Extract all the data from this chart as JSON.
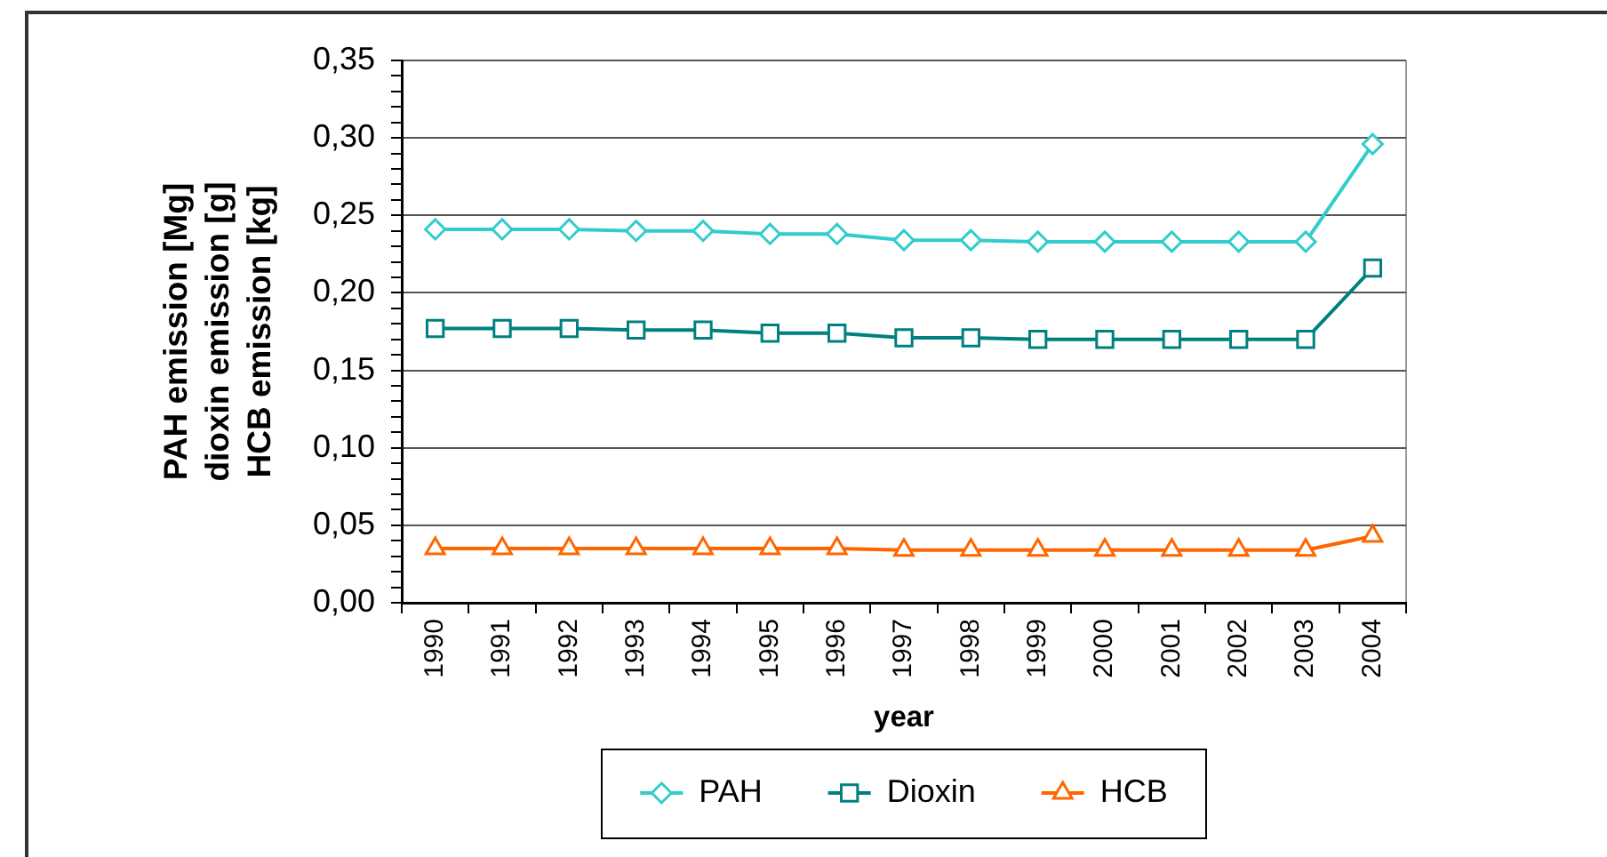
{
  "chart_data": {
    "type": "line",
    "xlabel": "year",
    "ylabel": "PAH emission [Mg]\ndioxin emission [g]\nHCB emission [kg]",
    "categories": [
      "1990",
      "1991",
      "1992",
      "1993",
      "1994",
      "1995",
      "1996",
      "1997",
      "1998",
      "1999",
      "2000",
      "2001",
      "2002",
      "2003",
      "2004"
    ],
    "series": [
      {
        "name": "PAH",
        "color": "#33cccc",
        "marker": "diamond",
        "values": [
          0.241,
          0.241,
          0.241,
          0.24,
          0.24,
          0.238,
          0.238,
          0.234,
          0.234,
          0.233,
          0.233,
          0.233,
          0.233,
          0.233,
          0.296
        ]
      },
      {
        "name": "Dioxin",
        "color": "#008080",
        "marker": "square",
        "values": [
          0.177,
          0.177,
          0.177,
          0.176,
          0.176,
          0.174,
          0.174,
          0.171,
          0.171,
          0.17,
          0.17,
          0.17,
          0.17,
          0.17,
          0.216
        ]
      },
      {
        "name": "HCB",
        "color": "#ff6600",
        "marker": "triangle",
        "values": [
          0.035,
          0.035,
          0.035,
          0.035,
          0.035,
          0.035,
          0.035,
          0.034,
          0.034,
          0.034,
          0.034,
          0.034,
          0.034,
          0.034,
          0.043
        ]
      }
    ],
    "ylim": [
      0,
      0.35
    ],
    "yticks": [
      {
        "value": 0,
        "label": "0,00"
      },
      {
        "value": 0.01,
        "label": null
      },
      {
        "value": 0.02,
        "label": null
      },
      {
        "value": 0.03,
        "label": null
      },
      {
        "value": 0.04,
        "label": null
      },
      {
        "value": 0.05,
        "label": "0,05"
      },
      {
        "value": 0.06,
        "label": null
      },
      {
        "value": 0.07,
        "label": null
      },
      {
        "value": 0.08,
        "label": null
      },
      {
        "value": 0.09,
        "label": null
      },
      {
        "value": 0.1,
        "label": "0,10"
      },
      {
        "value": 0.11,
        "label": null
      },
      {
        "value": 0.12,
        "label": null
      },
      {
        "value": 0.13,
        "label": null
      },
      {
        "value": 0.14,
        "label": null
      },
      {
        "value": 0.15,
        "label": "0,15"
      },
      {
        "value": 0.16,
        "label": null
      },
      {
        "value": 0.17,
        "label": null
      },
      {
        "value": 0.18,
        "label": null
      },
      {
        "value": 0.19,
        "label": null
      },
      {
        "value": 0.2,
        "label": "0,20"
      },
      {
        "value": 0.21,
        "label": null
      },
      {
        "value": 0.22,
        "label": null
      },
      {
        "value": 0.23,
        "label": null
      },
      {
        "value": 0.24,
        "label": null
      },
      {
        "value": 0.25,
        "label": "0,25"
      },
      {
        "value": 0.26,
        "label": null
      },
      {
        "value": 0.27,
        "label": null
      },
      {
        "value": 0.28,
        "label": null
      },
      {
        "value": 0.29,
        "label": null
      },
      {
        "value": 0.3,
        "label": "0,30"
      },
      {
        "value": 0.31,
        "label": null
      },
      {
        "value": 0.32,
        "label": null
      },
      {
        "value": 0.33,
        "label": null
      },
      {
        "value": 0.34,
        "label": null
      },
      {
        "value": 0.35,
        "label": "0,35"
      }
    ],
    "grid": "y",
    "legend": "bottom"
  }
}
